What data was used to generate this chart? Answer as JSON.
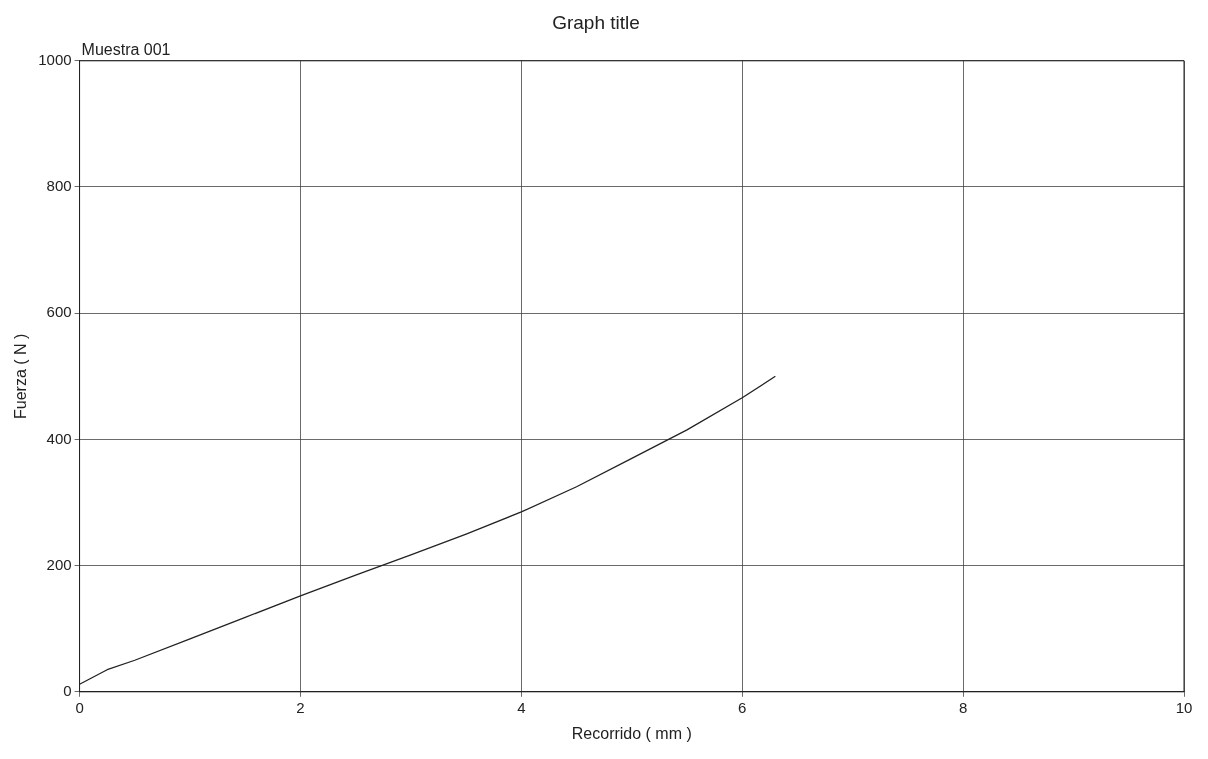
{
  "chart_data": {
    "type": "line",
    "title": "Graph title",
    "xlabel": "Recorrido ( mm )",
    "ylabel": "Fuerza ( N )",
    "annotations": [
      "Muestra 001"
    ],
    "x": [
      0,
      0.25,
      0.5,
      1,
      1.5,
      2,
      2.5,
      3,
      3.5,
      4,
      4.5,
      5,
      5.5,
      6,
      6.3
    ],
    "series": [
      {
        "color": "#222222",
        "values": [
          12,
          35,
          50,
          84,
          118,
          152,
          185,
          217,
          250,
          285,
          325,
          370,
          415,
          466,
          500
        ]
      }
    ],
    "xlim": [
      0,
      10
    ],
    "xticks": [
      0,
      2,
      4,
      6,
      8,
      10
    ],
    "ylim": [
      0,
      1000
    ],
    "yticks": [
      0,
      200,
      400,
      600,
      800,
      1000
    ],
    "grid": true,
    "legend": false,
    "marker": "none",
    "line_style": "solid"
  }
}
